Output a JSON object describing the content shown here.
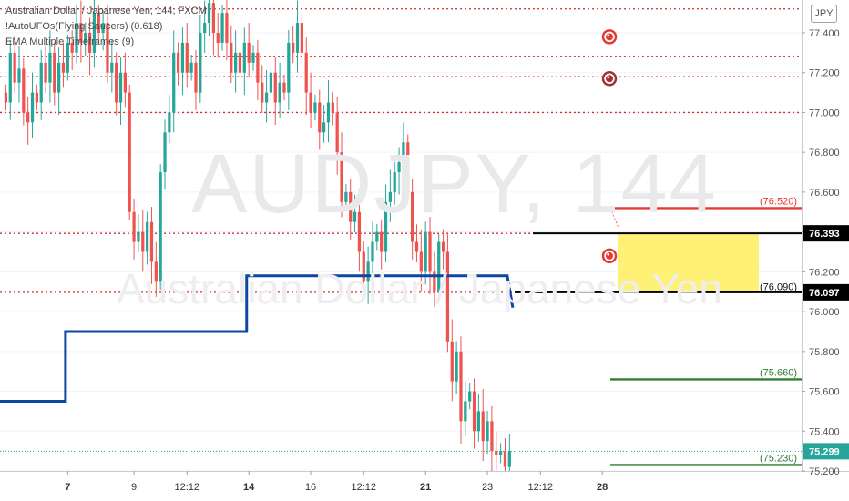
{
  "legend": {
    "line1": "Australian Dollar / Japanese Yen, 144, FXCM",
    "line2": "!AutoUFOs(Flying Saucers) (0.618)",
    "line3": "EMA Multiple Timeframes (9)"
  },
  "watermark": {
    "symbol": "AUDJPY, 144",
    "name": "Australian Dollar / Japanese Yen"
  },
  "currency_badge": "JPY",
  "chart_data": {
    "type": "candlestick",
    "symbol": "AUDJPY",
    "timeframe": "144",
    "ylim": [
      75.2,
      77.55
    ],
    "y_ticks": [
      75.2,
      75.4,
      75.6,
      75.8,
      76.0,
      76.2,
      76.4,
      76.6,
      76.8,
      77.0,
      77.2,
      77.4
    ],
    "y_tick_labels": [
      "75.200",
      "75.400",
      "75.600",
      "75.800",
      "76.000",
      "76.200",
      "76.400",
      "76.600",
      "76.800",
      "77.000",
      "77.200",
      "77.400"
    ],
    "x_ticks": [
      {
        "label": "7",
        "bold": true,
        "bar": 14
      },
      {
        "label": "9",
        "bold": false,
        "bar": 29
      },
      {
        "label": "12:12",
        "bold": false,
        "bar": 41
      },
      {
        "label": "14",
        "bold": true,
        "bar": 55
      },
      {
        "label": "16",
        "bold": false,
        "bar": 69
      },
      {
        "label": "12:12",
        "bold": false,
        "bar": 81
      },
      {
        "label": "21",
        "bold": true,
        "bar": 95
      },
      {
        "label": "23",
        "bold": false,
        "bar": 109
      },
      {
        "label": "12:12",
        "bold": false,
        "bar": 121
      },
      {
        "label": "28",
        "bold": true,
        "bar": 135
      }
    ],
    "candle_closes": [
      77.05,
      77.3,
      77.15,
      77.22,
      77.0,
      76.95,
      77.1,
      77.05,
      77.25,
      77.15,
      77.3,
      77.1,
      77.25,
      77.2,
      77.35,
      77.3,
      77.45,
      77.35,
      77.4,
      77.3,
      77.5,
      77.4,
      77.45,
      77.2,
      77.25,
      77.05,
      77.2,
      77.1,
      76.5,
      76.35,
      76.4,
      76.3,
      76.45,
      76.25,
      76.15,
      76.7,
      76.9,
      77.0,
      77.3,
      77.2,
      77.35,
      77.2,
      77.25,
      77.1,
      77.4,
      77.45,
      77.55,
      77.4,
      77.35,
      77.5,
      77.35,
      77.2,
      77.3,
      77.2,
      77.35,
      77.25,
      77.3,
      77.15,
      77.05,
      77.1,
      77.2,
      77.05,
      77.15,
      77.1,
      77.35,
      77.3,
      77.45,
      77.3,
      77.1,
      77.0,
      77.05,
      76.9,
      76.95,
      77.05,
      77.0,
      76.8,
      76.55,
      76.6,
      76.45,
      76.5,
      76.3,
      76.15,
      76.25,
      76.35,
      76.4,
      76.3,
      76.55,
      76.6,
      76.7,
      76.75,
      76.85,
      76.6,
      76.35,
      76.3,
      76.2,
      76.4,
      76.2,
      76.1,
      76.35,
      76.3,
      75.85,
      75.65,
      75.8,
      75.45,
      75.55,
      75.6,
      75.4,
      75.5,
      75.35,
      75.45,
      75.3,
      75.28,
      75.3,
      75.22,
      75.3
    ],
    "last_price": 75.299,
    "horizontal_levels": [
      {
        "price": 77.52,
        "style": "dotted",
        "color": "#d32f2f",
        "x_end": "full"
      },
      {
        "price": 77.28,
        "style": "dotted",
        "color": "#d32f2f",
        "x_end": "full"
      },
      {
        "price": 77.18,
        "style": "dotted",
        "color": "#d32f2f",
        "x_end": "full"
      },
      {
        "price": 77.0,
        "style": "dotted",
        "color": "#d32f2f",
        "x_end": "full"
      },
      {
        "price": 76.393,
        "style": "dotted",
        "color": "#d32f2f",
        "x_end": "full"
      },
      {
        "price": 76.097,
        "style": "dotted",
        "color": "#d32f2f",
        "x_end": "full"
      }
    ],
    "ema_steps": [
      {
        "from_bar": 0,
        "to_bar": 14,
        "value": 75.55
      },
      {
        "from_bar": 14,
        "to_bar": 55,
        "value": 75.9
      },
      {
        "from_bar": 55,
        "to_bar": 114,
        "value": 76.18
      }
    ],
    "ema_end_value": 76.02,
    "zone": {
      "top": 76.393,
      "bottom": 76.097,
      "color": "#fff176"
    },
    "targets": [
      {
        "label": "(76.520)",
        "price": 76.52,
        "color": "#e53935"
      },
      {
        "label": "(76.090)",
        "price": 76.09,
        "color": "#111111"
      },
      {
        "label": "(75.660)",
        "price": 75.66,
        "color": "#2e7d32"
      },
      {
        "label": "(75.230)",
        "price": 75.23,
        "color": "#2e7d32"
      }
    ],
    "ufo_markers": [
      {
        "price": 77.38,
        "color": "#e53935"
      },
      {
        "price": 77.17,
        "color": "#a33232"
      },
      {
        "price": 76.28,
        "color": "#e53935"
      }
    ],
    "price_badges": [
      {
        "label": "76.393",
        "price": 76.393,
        "bg": "#000000",
        "fg": "#ffffff"
      },
      {
        "label": "76.097",
        "price": 76.097,
        "bg": "#000000",
        "fg": "#ffffff"
      },
      {
        "label": "75.299",
        "price": 75.299,
        "bg": "#26a69a",
        "fg": "#ffffff"
      }
    ],
    "colors": {
      "up": "#26a69a",
      "down": "#ef5350",
      "ema": "#0d47a1",
      "grid": "#f0f3fa",
      "axis_text": "#555555"
    }
  }
}
